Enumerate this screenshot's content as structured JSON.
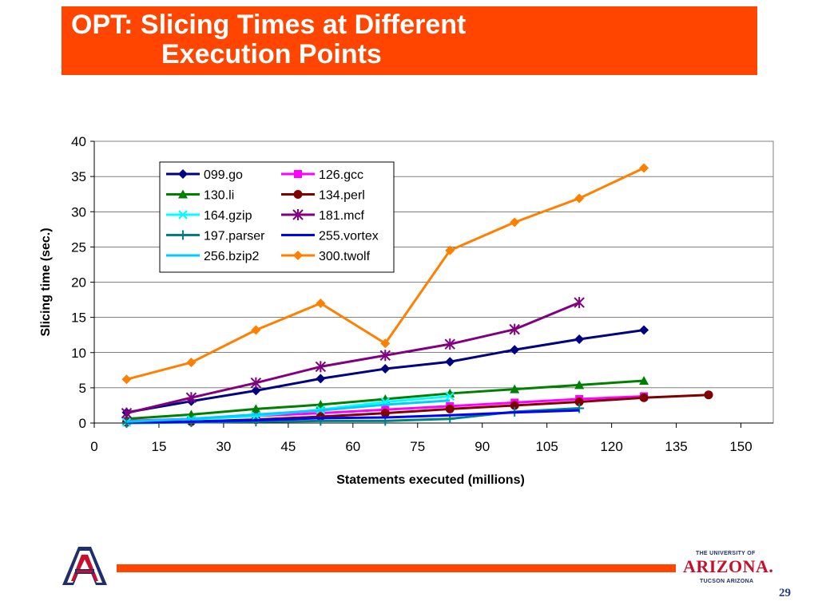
{
  "slide": {
    "title_line1": "OPT: Slicing Times at Different",
    "title_line2": "Execution Points",
    "page_number": "29",
    "university_small1": "THE UNIVERSITY OF",
    "university_name": "ARIZONA.",
    "university_small2": "TUCSON ARIZONA"
  },
  "colors": {
    "title_bar": "#ff4500",
    "footer_bar": "#ff4500",
    "logo_blue": "#1f2f6b",
    "logo_red": "#c8102e"
  },
  "chart_data": {
    "type": "line",
    "title": "",
    "xlabel": "Statements executed (millions)",
    "ylabel": "Slicing time (sec.)",
    "xlim": [
      0,
      157.5
    ],
    "ylim": [
      0,
      40
    ],
    "xticks": [
      0,
      15,
      30,
      45,
      60,
      75,
      90,
      105,
      120,
      135,
      150
    ],
    "yticks": [
      0,
      5,
      10,
      15,
      20,
      25,
      30,
      35,
      40
    ],
    "legend_position": "top-left",
    "series": [
      {
        "name": "099.go",
        "color": "#000080",
        "marker": "diamond",
        "x": [
          7.5,
          22.5,
          37.5,
          52.5,
          67.5,
          82.5,
          97.5,
          112.5,
          127.5
        ],
        "y": [
          1.5,
          3.1,
          4.6,
          6.3,
          7.7,
          8.7,
          10.4,
          11.9,
          13.2
        ]
      },
      {
        "name": "126.gcc",
        "color": "#ff00ff",
        "marker": "square",
        "x": [
          7.5,
          22.5,
          37.5,
          52.5,
          67.5,
          82.5,
          97.5,
          112.5,
          127.5
        ],
        "y": [
          0.3,
          0.6,
          1.0,
          1.4,
          1.9,
          2.4,
          2.9,
          3.4,
          3.8
        ]
      },
      {
        "name": "130.li",
        "color": "#008000",
        "marker": "triangle",
        "x": [
          7.5,
          22.5,
          37.5,
          52.5,
          67.5,
          82.5,
          97.5,
          112.5,
          127.5
        ],
        "y": [
          0.6,
          1.2,
          2.0,
          2.6,
          3.4,
          4.2,
          4.8,
          5.4,
          6.0
        ]
      },
      {
        "name": "134.perl",
        "color": "#800000",
        "marker": "circle",
        "x": [
          7.5,
          22.5,
          37.5,
          52.5,
          67.5,
          82.5,
          97.5,
          112.5,
          127.5,
          142.5
        ],
        "y": [
          0.1,
          0.2,
          0.5,
          0.9,
          1.4,
          2.0,
          2.5,
          3.0,
          3.6,
          4.0
        ]
      },
      {
        "name": "164.gzip",
        "color": "#00ffff",
        "marker": "x",
        "x": [
          7.5,
          22.5,
          37.5,
          52.5,
          67.5,
          82.5
        ],
        "y": [
          0.1,
          0.5,
          1.0,
          1.9,
          3.0,
          3.8
        ]
      },
      {
        "name": "181.mcf",
        "color": "#800080",
        "marker": "star",
        "x": [
          7.5,
          22.5,
          37.5,
          52.5,
          67.5,
          82.5,
          97.5,
          112.5
        ],
        "y": [
          1.4,
          3.6,
          5.7,
          8.0,
          9.6,
          11.2,
          13.3,
          17.1
        ]
      },
      {
        "name": "197.parser",
        "color": "#008080",
        "marker": "plus",
        "x": [
          7.5,
          22.5,
          37.5,
          52.5,
          67.5,
          82.5,
          97.5,
          112.5
        ],
        "y": [
          0.0,
          0.1,
          0.2,
          0.3,
          0.3,
          0.6,
          1.6,
          2.1
        ]
      },
      {
        "name": "255.vortex",
        "color": "#0000ff",
        "marker": "none",
        "x": [
          7.5,
          22.5,
          37.5,
          52.5,
          67.5,
          82.5,
          97.5,
          112.5
        ],
        "y": [
          0.1,
          0.2,
          0.4,
          0.7,
          0.8,
          1.1,
          1.5,
          1.8
        ]
      },
      {
        "name": "256.bzip2",
        "color": "#00ccff",
        "marker": "none",
        "x": [
          7.5,
          22.5,
          37.5,
          52.5,
          67.5,
          82.5
        ],
        "y": [
          0.2,
          0.6,
          1.2,
          1.8,
          2.6,
          3.2
        ]
      },
      {
        "name": "300.twolf",
        "color": "#ff8000",
        "marker": "diamond",
        "x": [
          7.5,
          22.5,
          37.5,
          52.5,
          67.5,
          82.5,
          97.5,
          112.5,
          127.5
        ],
        "y": [
          6.2,
          8.6,
          13.2,
          17.0,
          11.3,
          24.5,
          28.5,
          31.9,
          36.2
        ]
      }
    ]
  }
}
